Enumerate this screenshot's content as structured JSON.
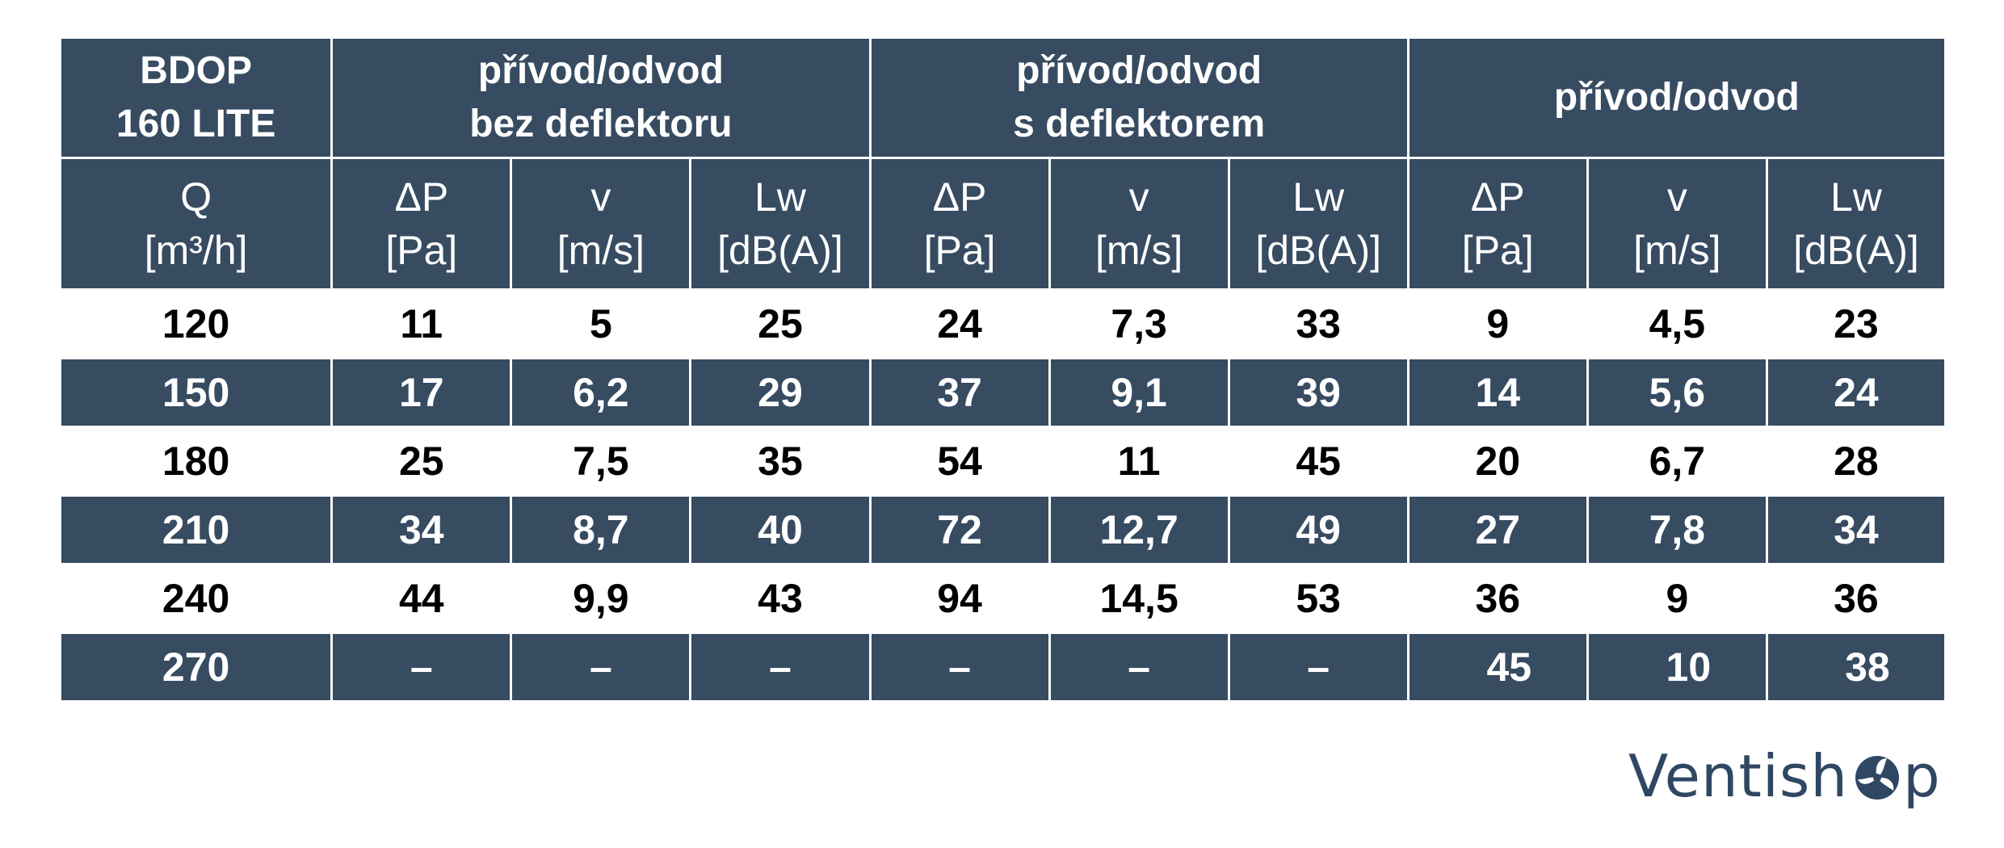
{
  "table": {
    "group_headers": [
      {
        "line1": "BDOP",
        "line2": "160  LITE"
      },
      {
        "line1": "přívod/odvod",
        "line2": "bez deflektoru"
      },
      {
        "line1": "přívod/odvod",
        "line2": "s deflektorem"
      },
      {
        "line1": "přívod/odvod",
        "line2": ""
      }
    ],
    "column_headers": [
      {
        "symbol": "Q",
        "unit": "[m³/h]"
      },
      {
        "symbol": "ΔP",
        "unit": "[Pa]"
      },
      {
        "symbol": "v",
        "unit": "[m/s]"
      },
      {
        "symbol": "Lw",
        "unit": "[dB(A)]"
      },
      {
        "symbol": "ΔP",
        "unit": "[Pa]"
      },
      {
        "symbol": "v",
        "unit": "[m/s]"
      },
      {
        "symbol": "Lw",
        "unit": "[dB(A)]"
      },
      {
        "symbol": "ΔP",
        "unit": "[Pa]"
      },
      {
        "symbol": "v",
        "unit": "[m/s]"
      },
      {
        "symbol": "Lw",
        "unit": "[dB(A)]"
      }
    ],
    "rows": [
      [
        "120",
        "11",
        "5",
        "25",
        "24",
        "7,3",
        "33",
        "9",
        "4,5",
        "23"
      ],
      [
        "150",
        "17",
        "6,2",
        "29",
        "37",
        "9,1",
        "39",
        "14",
        "5,6",
        "24"
      ],
      [
        "180",
        "25",
        "7,5",
        "35",
        "54",
        "11",
        "45",
        "20",
        "6,7",
        "28"
      ],
      [
        "210",
        "34",
        "8,7",
        "40",
        "72",
        "12,7",
        "49",
        "27",
        "7,8",
        "34"
      ],
      [
        "240",
        "44",
        "9,9",
        "43",
        "94",
        "14,5",
        "53",
        "36",
        "9",
        "36"
      ],
      [
        "270",
        "–",
        "–",
        "–",
        "–",
        "–",
        "–",
        "45",
        "10",
        "38"
      ]
    ]
  },
  "logo": {
    "text_before": "Ventish",
    "text_after": "p",
    "icon": "fan-o-icon",
    "color": "#2f4763"
  },
  "colors": {
    "header_bg": "#374b61",
    "header_text": "#ffffff",
    "body_text": "#000000"
  }
}
